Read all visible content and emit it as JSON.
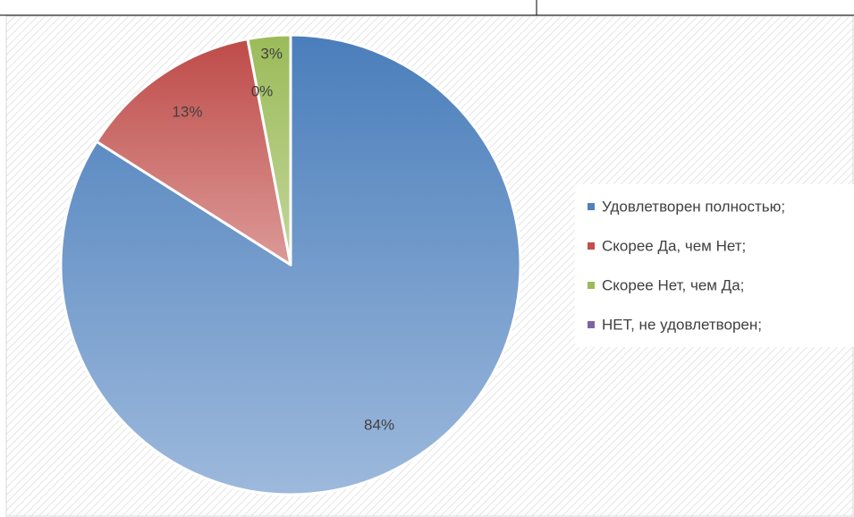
{
  "chart_data": {
    "type": "pie",
    "categories": [
      "Удовлетворен полностью;",
      "Скорее Да, чем Нет;",
      "Скорее Нет, чем Да;",
      "НЕТ, не удовлетворен;"
    ],
    "values": [
      84,
      13,
      3,
      0
    ],
    "value_labels": [
      "84%",
      "13%",
      "3%",
      "0%"
    ],
    "colors": [
      "#4f81bd",
      "#c0504d",
      "#9bbb59",
      "#8064a2"
    ],
    "legend": "right"
  }
}
